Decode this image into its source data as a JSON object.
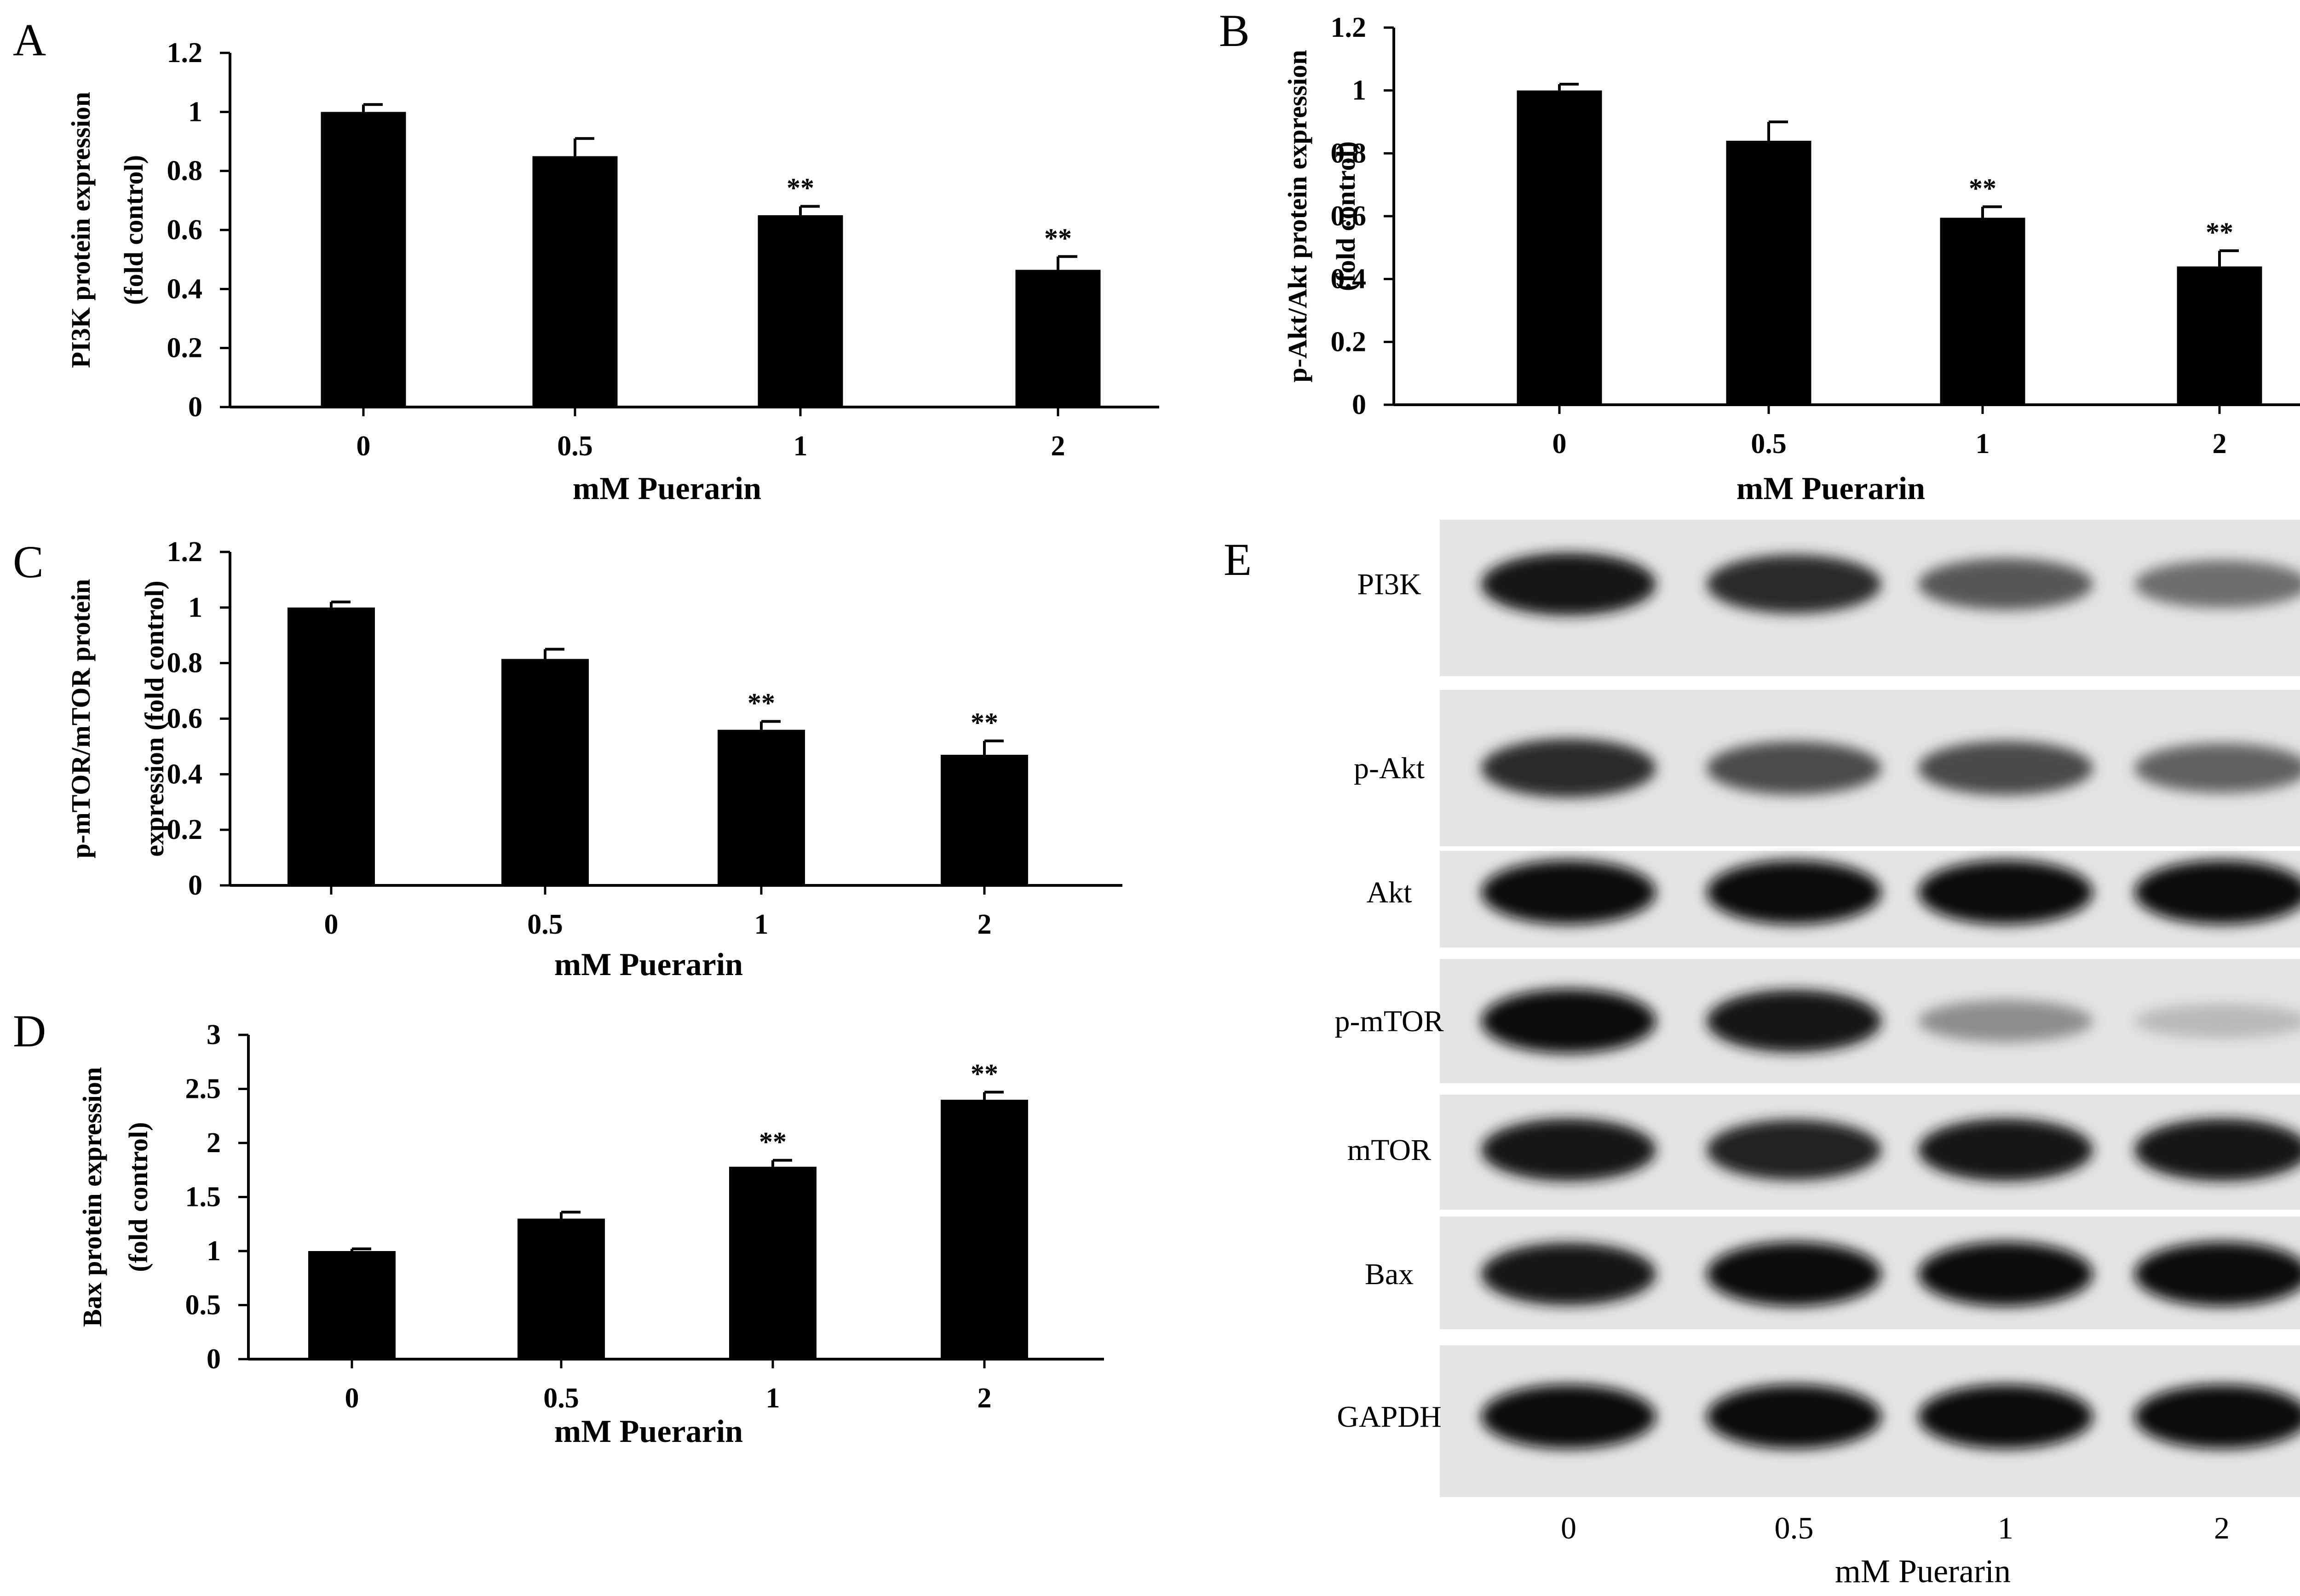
{
  "chart_data": [
    {
      "panel": "A",
      "type": "bar",
      "categories": [
        "0",
        "0.5",
        "1",
        "2"
      ],
      "values": [
        1.0,
        0.85,
        0.65,
        0.465
      ],
      "errors": [
        0.025,
        0.06,
        0.03,
        0.045
      ],
      "significance": [
        "",
        "",
        "**",
        "**"
      ],
      "ylim": [
        0,
        1.2
      ],
      "yticks": [
        "0",
        "0.2",
        "0.4",
        "0.6",
        "0.8",
        "1",
        "1.2"
      ],
      "xlabel": "mM Puerarin",
      "ylabel": [
        "PI3K protein expression",
        "(fold control)"
      ]
    },
    {
      "panel": "B",
      "type": "bar",
      "categories": [
        "0",
        "0.5",
        "1",
        "2"
      ],
      "values": [
        1.0,
        0.84,
        0.595,
        0.44
      ],
      "errors": [
        0.02,
        0.06,
        0.035,
        0.05
      ],
      "significance": [
        "",
        "",
        "**",
        "**"
      ],
      "ylim": [
        0,
        1.2
      ],
      "yticks": [
        "0",
        "0.2",
        "0.4",
        "0.6",
        "0.8",
        "1",
        "1.2"
      ],
      "xlabel": "mM Puerarin",
      "ylabel": [
        "p-Akt/Akt protein expression",
        "(fold control)"
      ]
    },
    {
      "panel": "C",
      "type": "bar",
      "categories": [
        "0",
        "0.5",
        "1",
        "2"
      ],
      "values": [
        1.0,
        0.815,
        0.56,
        0.47
      ],
      "errors": [
        0.02,
        0.035,
        0.03,
        0.05
      ],
      "significance": [
        "",
        "",
        "**",
        "**"
      ],
      "ylim": [
        0,
        1.2
      ],
      "yticks": [
        "0",
        "0.2",
        "0.4",
        "0.6",
        "0.8",
        "1",
        "1.2"
      ],
      "xlabel": "mM Puerarin",
      "ylabel": [
        "p-mTOR/mTOR protein",
        "expression (fold control)"
      ]
    },
    {
      "panel": "D",
      "type": "bar",
      "categories": [
        "0",
        "0.5",
        "1",
        "2"
      ],
      "values": [
        1.0,
        1.3,
        1.78,
        2.4
      ],
      "errors": [
        0.02,
        0.06,
        0.06,
        0.07
      ],
      "significance": [
        "",
        "",
        "**",
        "**"
      ],
      "ylim": [
        0,
        3
      ],
      "yticks": [
        "0",
        "0.5",
        "1",
        "1.5",
        "2",
        "2.5",
        "3"
      ],
      "xlabel": "mM Puerarin",
      "ylabel": [
        "Bax protein expression",
        "(fold control)"
      ]
    }
  ],
  "blot": {
    "panel": "E",
    "rows": [
      {
        "label": "PI3K",
        "intensities": [
          0.95,
          0.85,
          0.65,
          0.55
        ]
      },
      {
        "label": "p-Akt",
        "intensities": [
          0.85,
          0.7,
          0.72,
          0.6
        ]
      },
      {
        "label": "Akt",
        "intensities": [
          1.0,
          1.0,
          1.0,
          1.0
        ]
      },
      {
        "label": "p-mTOR",
        "intensities": [
          1.0,
          0.95,
          0.4,
          0.2
        ]
      },
      {
        "label": "mTOR",
        "intensities": [
          0.95,
          0.9,
          0.95,
          0.95
        ]
      },
      {
        "label": "Bax",
        "intensities": [
          0.95,
          1.0,
          1.0,
          1.0
        ]
      },
      {
        "label": "GAPDH",
        "intensities": [
          1.0,
          1.0,
          1.0,
          1.0
        ]
      }
    ],
    "lanes": [
      "0",
      "0.5",
      "1",
      "2"
    ],
    "xlabel": "mM Puerarin"
  }
}
